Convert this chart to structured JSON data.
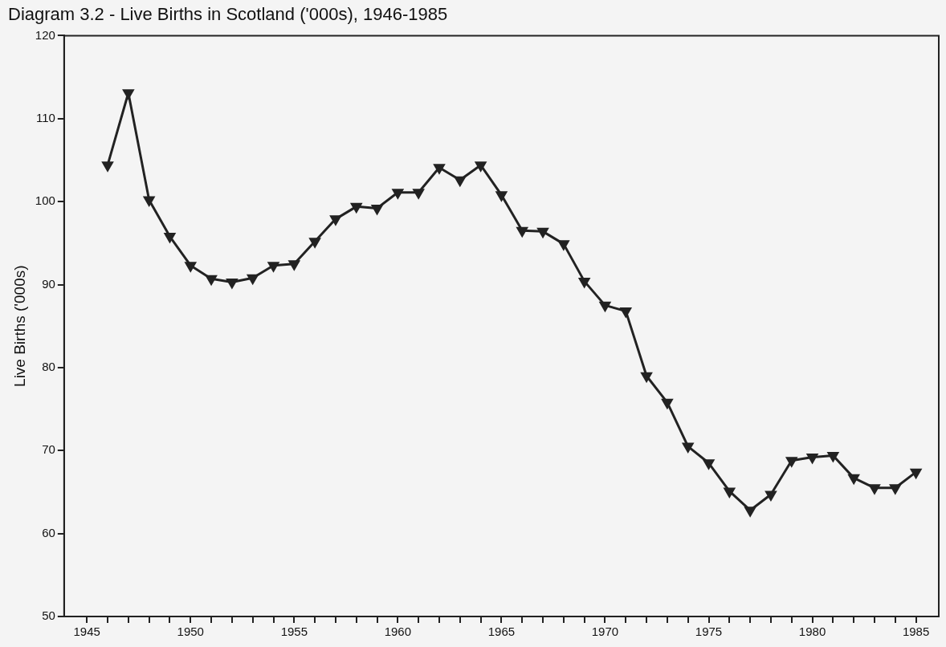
{
  "chart_data": {
    "type": "line",
    "title": "Diagram 3.2 - Live Births in Scotland ('000s), 1946-1985",
    "ylabel": "Live Births ('000s)",
    "x": [
      1946,
      1947,
      1948,
      1949,
      1950,
      1951,
      1952,
      1953,
      1954,
      1955,
      1956,
      1957,
      1958,
      1959,
      1960,
      1961,
      1962,
      1963,
      1964,
      1965,
      1966,
      1967,
      1968,
      1969,
      1970,
      1971,
      1972,
      1973,
      1974,
      1975,
      1976,
      1977,
      1978,
      1979,
      1980,
      1981,
      1982,
      1983,
      1984,
      1985
    ],
    "series": [
      {
        "color": "#222222",
        "values": [
          104.4,
          113.1,
          100.2,
          95.8,
          92.3,
          90.7,
          90.3,
          90.8,
          92.3,
          92.5,
          95.2,
          97.9,
          99.4,
          99.2,
          101.1,
          101.1,
          104.1,
          102.6,
          104.4,
          100.8,
          96.5,
          96.4,
          94.9,
          90.4,
          87.5,
          86.8,
          79.0,
          75.8,
          70.5,
          68.5,
          65.1,
          62.8,
          64.7,
          68.8,
          69.2,
          69.4,
          66.7,
          65.5,
          65.5,
          67.4
        ]
      }
    ],
    "xlim": [
      1943.9,
      1986.1
    ],
    "xticks": [
      1945,
      {
        "value": 1946,
        "label": null
      },
      {
        "value": 1947,
        "label": null
      },
      {
        "value": 1948,
        "label": null
      },
      {
        "value": 1949,
        "label": null
      },
      1950,
      {
        "value": 1951,
        "label": null
      },
      {
        "value": 1952,
        "label": null
      },
      {
        "value": 1953,
        "label": null
      },
      {
        "value": 1954,
        "label": null
      },
      1955,
      {
        "value": 1956,
        "label": null
      },
      {
        "value": 1957,
        "label": null
      },
      {
        "value": 1958,
        "label": null
      },
      {
        "value": 1959,
        "label": null
      },
      1960,
      {
        "value": 1961,
        "label": null
      },
      {
        "value": 1962,
        "label": null
      },
      {
        "value": 1963,
        "label": null
      },
      {
        "value": 1964,
        "label": null
      },
      1965,
      {
        "value": 1966,
        "label": null
      },
      {
        "value": 1967,
        "label": null
      },
      {
        "value": 1968,
        "label": null
      },
      {
        "value": 1969,
        "label": null
      },
      1970,
      {
        "value": 1971,
        "label": null
      },
      {
        "value": 1972,
        "label": null
      },
      {
        "value": 1973,
        "label": null
      },
      {
        "value": 1974,
        "label": null
      },
      1975,
      {
        "value": 1976,
        "label": null
      },
      {
        "value": 1977,
        "label": null
      },
      {
        "value": 1978,
        "label": null
      },
      {
        "value": 1979,
        "label": null
      },
      1980,
      {
        "value": 1981,
        "label": null
      },
      {
        "value": 1982,
        "label": null
      },
      {
        "value": 1983,
        "label": null
      },
      {
        "value": 1984,
        "label": null
      },
      1985
    ],
    "ylim": [
      50,
      120
    ],
    "yticks": [
      50,
      60,
      70,
      80,
      90,
      100,
      110,
      120
    ],
    "grid": false,
    "legend": false,
    "marker": "triangle",
    "line_style": "solid"
  }
}
